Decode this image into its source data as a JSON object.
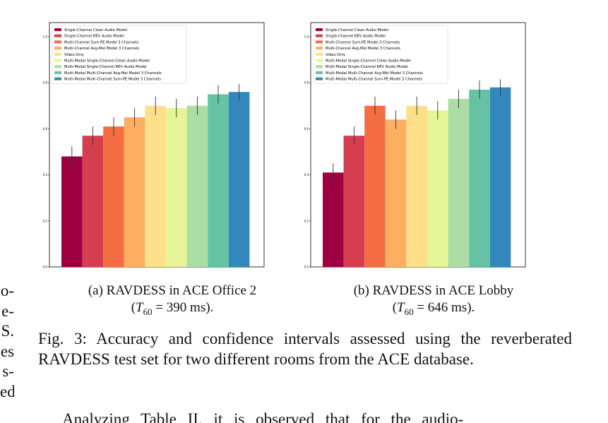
{
  "colors": [
    "#9e0142",
    "#d53e4f",
    "#f46d43",
    "#fdae61",
    "#fee08b",
    "#e6f598",
    "#abdda4",
    "#66c2a5",
    "#3288bd"
  ],
  "legend_labels": [
    "Single-Channel Clean Audio Model",
    "Single-Channel REV Audio Model",
    "Multi-Channel Sum-PE Model 3 Channels",
    "Multi-Channel Avg-Mel Model 3 Channels",
    "Video Only",
    "Multi-Modal Single-Channel Clean Audio Model",
    "Multi-Modal Single-Channel REV Audio Model",
    "Multi-Modal Multi-Channel Avg-Mel Model 3 Channels",
    "Multi-Modal Multi-Channel Sum-PE Model 3 Channels"
  ],
  "chart_data": [
    {
      "type": "bar",
      "categories": [
        "Single-Channel Clean Audio Model",
        "Single-Channel REV Audio Model",
        "Multi-Channel Sum-PE Model 3 Channels",
        "Multi-Channel Avg-Mel Model 3 Channels",
        "Video Only",
        "Multi-Modal Single-Channel Clean Audio Model",
        "Multi-Modal Single-Channel REV Audio Model",
        "Multi-Modal Multi-Channel Avg-Mel Model 3 Channels",
        "Multi-Modal Multi-Channel Sum-PE Model 3 Channels"
      ],
      "values": [
        0.48,
        0.57,
        0.61,
        0.65,
        0.7,
        0.69,
        0.7,
        0.75,
        0.76
      ],
      "errors": [
        0.045,
        0.04,
        0.04,
        0.04,
        0.04,
        0.04,
        0.04,
        0.04,
        0.035
      ],
      "ylim": [
        0.0,
        1.0
      ],
      "yticks": [
        "0.0",
        "0.2",
        "0.4",
        "0.6",
        "0.8",
        "1.0"
      ],
      "legend": "top-left",
      "grid": false
    },
    {
      "type": "bar",
      "categories": [
        "Single-Channel Clean Audio Model",
        "Single-Channel REV Audio Model",
        "Multi-Channel Sum-PE Model 3 Channels",
        "Multi-Channel Avg-Mel Model 3 Channels",
        "Video Only",
        "Multi-Modal Single-Channel Clean Audio Model",
        "Multi-Modal Single-Channel REV Audio Model",
        "Multi-Modal Multi-Channel Avg-Mel Model 3 Channels",
        "Multi-Modal Multi-Channel Sum-PE Model 3 Channels"
      ],
      "values": [
        0.41,
        0.57,
        0.7,
        0.64,
        0.7,
        0.68,
        0.73,
        0.77,
        0.78
      ],
      "errors": [
        0.04,
        0.04,
        0.04,
        0.04,
        0.04,
        0.04,
        0.04,
        0.04,
        0.035
      ],
      "ylim": [
        0.0,
        1.0
      ],
      "yticks": [
        "0.0",
        "0.2",
        "0.4",
        "0.6",
        "0.8",
        "1.0"
      ],
      "legend": "top-left",
      "grid": false
    }
  ],
  "subcaptions": [
    {
      "line1": "(a) RAVDESS in ACE Office 2",
      "t_sub": "60",
      "line2_rest": " = 390 ms)."
    },
    {
      "line1": "(b) RAVDESS in ACE Lobby",
      "t_sub": "60",
      "line2_rest": " = 646 ms)."
    }
  ],
  "caption": "Fig. 3: Accuracy and confidence intervals assessed using the reverberated RAVDESS test set for two different rooms from the ACE database.",
  "left_fragments": [
    "o-",
    "e-",
    "S.",
    "es",
    "s-",
    "ed"
  ],
  "body_fragment": "Analyzing Table II, it is observed that for the audio-"
}
